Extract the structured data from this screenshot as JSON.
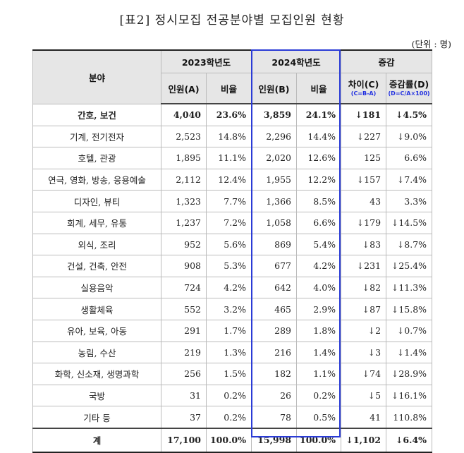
{
  "title": "[표2] 정시모집 전공분야별 모집인원 현황",
  "unit": "(단위 : 명)",
  "headers": {
    "field": "분야",
    "y2023": "2023학년도",
    "y2024": "2024학년도",
    "change": "증감",
    "count_a": "인원(A)",
    "ratio": "비율",
    "count_b": "인원(B)",
    "diff": "차이(C)",
    "diff_formula": "(C=B-A)",
    "rate": "증감률(D)",
    "rate_formula": "(D=C/A×100)"
  },
  "rows": [
    {
      "name": "간호, 보건",
      "a": "4,040",
      "ra": "23.6%",
      "b": "3,859",
      "rb": "24.1%",
      "c": "↓181",
      "d": "↓4.5%"
    },
    {
      "name": "기계, 전기전자",
      "a": "2,523",
      "ra": "14.8%",
      "b": "2,296",
      "rb": "14.4%",
      "c": "↓227",
      "d": "↓9.0%"
    },
    {
      "name": "호텔, 관광",
      "a": "1,895",
      "ra": "11.1%",
      "b": "2,020",
      "rb": "12.6%",
      "c": "125",
      "d": "6.6%"
    },
    {
      "name": "연극, 영화, 방송, 응용예술",
      "a": "2,112",
      "ra": "12.4%",
      "b": "1,955",
      "rb": "12.2%",
      "c": "↓157",
      "d": "↓7.4%"
    },
    {
      "name": "디자인, 뷰티",
      "a": "1,323",
      "ra": "7.7%",
      "b": "1,366",
      "rb": "8.5%",
      "c": "43",
      "d": "3.3%"
    },
    {
      "name": "회계, 세무, 유통",
      "a": "1,237",
      "ra": "7.2%",
      "b": "1,058",
      "rb": "6.6%",
      "c": "↓179",
      "d": "↓14.5%"
    },
    {
      "name": "외식, 조리",
      "a": "952",
      "ra": "5.6%",
      "b": "869",
      "rb": "5.4%",
      "c": "↓83",
      "d": "↓8.7%"
    },
    {
      "name": "건설, 건축, 안전",
      "a": "908",
      "ra": "5.3%",
      "b": "677",
      "rb": "4.2%",
      "c": "↓231",
      "d": "↓25.4%"
    },
    {
      "name": "실용음악",
      "a": "724",
      "ra": "4.2%",
      "b": "642",
      "rb": "4.0%",
      "c": "↓82",
      "d": "↓11.3%"
    },
    {
      "name": "생활체육",
      "a": "552",
      "ra": "3.2%",
      "b": "465",
      "rb": "2.9%",
      "c": "↓87",
      "d": "↓15.8%"
    },
    {
      "name": "유아, 보육, 아동",
      "a": "291",
      "ra": "1.7%",
      "b": "289",
      "rb": "1.8%",
      "c": "↓2",
      "d": "↓0.7%"
    },
    {
      "name": "농림, 수산",
      "a": "219",
      "ra": "1.3%",
      "b": "216",
      "rb": "1.4%",
      "c": "↓3",
      "d": "↓1.4%"
    },
    {
      "name": "화학, 신소재, 생명과학",
      "a": "256",
      "ra": "1.5%",
      "b": "182",
      "rb": "1.1%",
      "c": "↓74",
      "d": "↓28.9%"
    },
    {
      "name": "국방",
      "a": "31",
      "ra": "0.2%",
      "b": "26",
      "rb": "0.2%",
      "c": "↓5",
      "d": "↓16.1%"
    },
    {
      "name": "기타 등",
      "a": "37",
      "ra": "0.2%",
      "b": "78",
      "rb": "0.5%",
      "c": "41",
      "d": "110.8%"
    }
  ],
  "total": {
    "name": "계",
    "a": "17,100",
    "ra": "100.0%",
    "b": "15,998",
    "rb": "100.0%",
    "c": "↓1,102",
    "d": "↓6.4%"
  },
  "colors": {
    "highlight_border": "#2a3bd6",
    "formula_text": "#1f2ee0",
    "header_bg": "#e6e6e6"
  }
}
